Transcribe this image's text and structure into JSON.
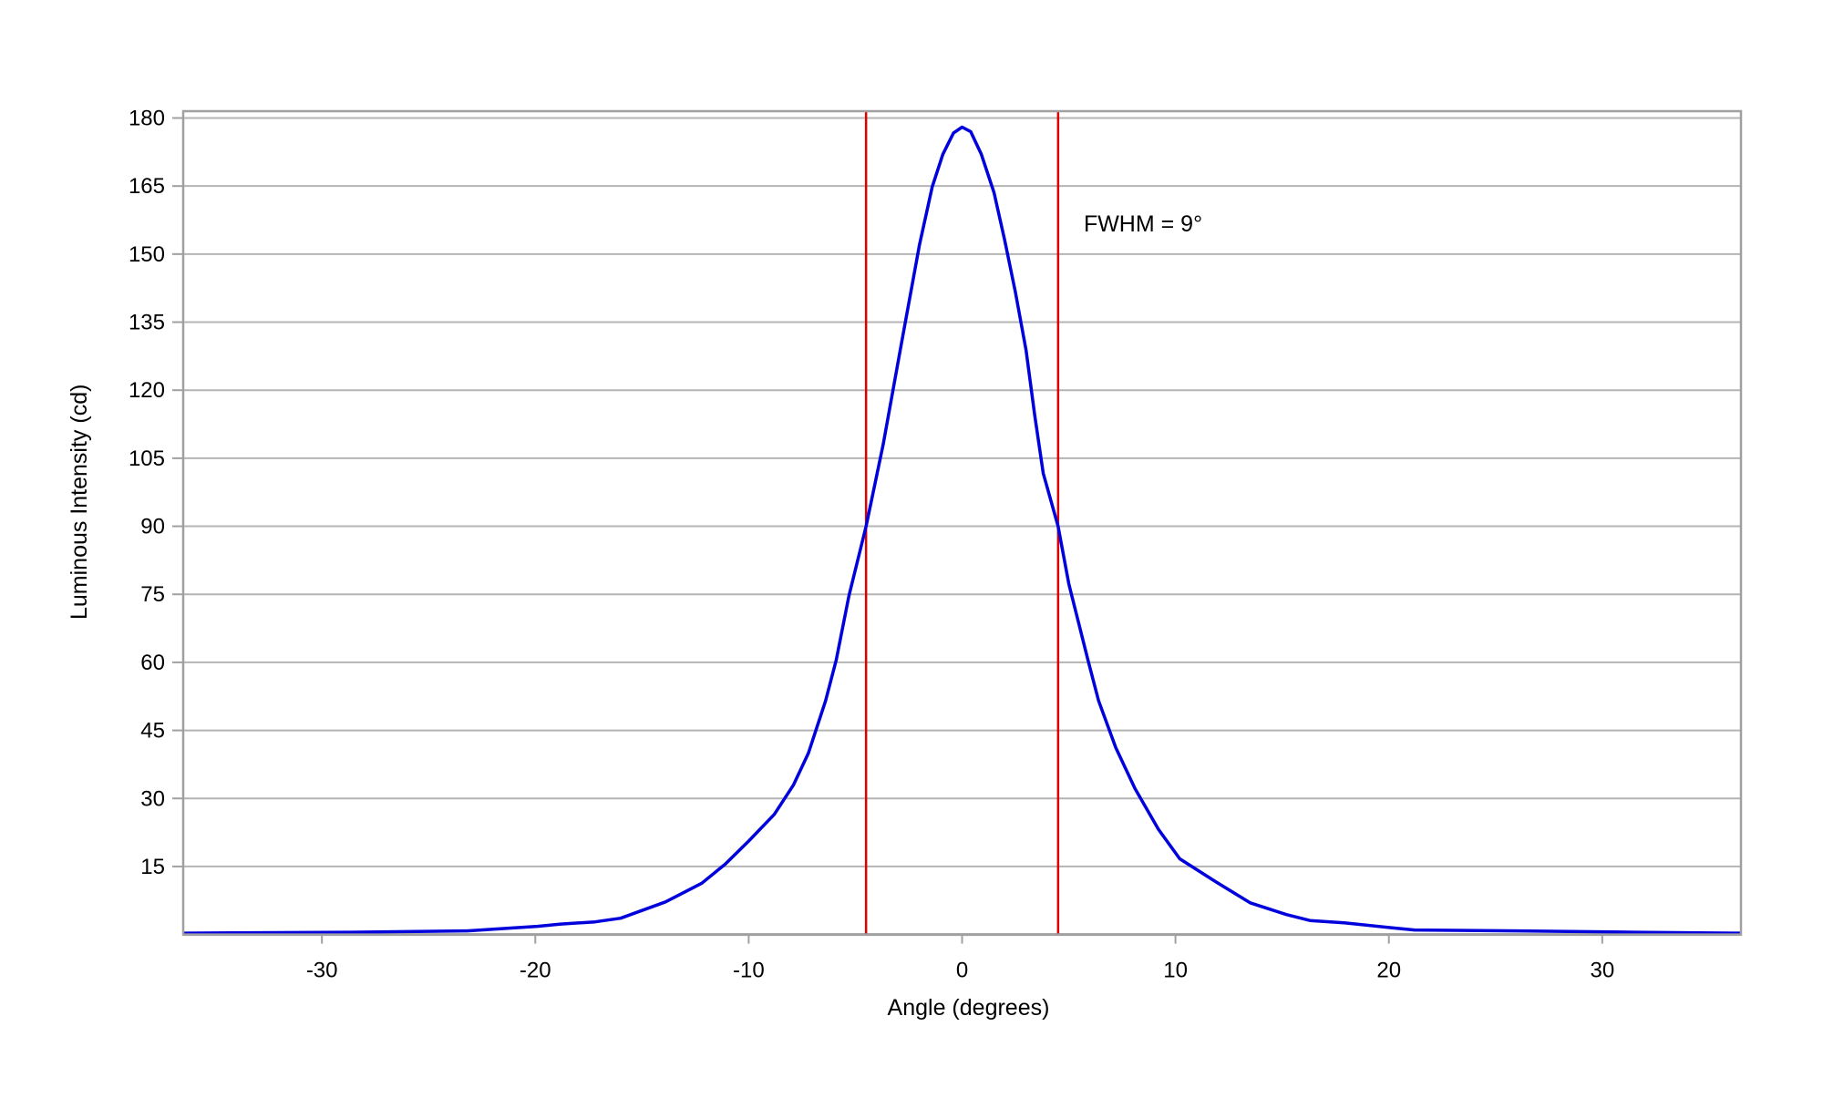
{
  "chart_data": {
    "type": "line",
    "title": "",
    "xlabel": "Angle (degrees)",
    "ylabel": "Luminous Intensity (cd)",
    "xlim": [
      -36.5,
      36.5
    ],
    "ylim": [
      0,
      180
    ],
    "xticks": [
      -30,
      -20,
      -10,
      0,
      10,
      20,
      30
    ],
    "yticks": [
      15,
      30,
      45,
      60,
      75,
      90,
      105,
      120,
      135,
      150,
      165,
      180
    ],
    "grid": "horizontal",
    "colors": {
      "series": "#0000dd",
      "markers": "#dd0000",
      "grid": "#b4b4b4",
      "frame": "#a0a0a0"
    },
    "series": [
      {
        "x": [
          -36.5,
          -28.7,
          -23.2,
          -19.9,
          -18.8,
          -17.2,
          -16,
          -13.9,
          -12.2,
          -11.1,
          -10,
          -8.8,
          -7.9,
          -7.2,
          -6.4,
          -5.9,
          -5.3,
          -4.5,
          -3.7,
          -2.9,
          -2,
          -1.4,
          -0.9,
          -0.4,
          0,
          0.4,
          0.9,
          1.5,
          2,
          2.5,
          3,
          3.4,
          3.8,
          4.5,
          5,
          5.9,
          6.4,
          7.2,
          8.1,
          9.2,
          10.2,
          11.9,
          13.5,
          15.2,
          16.3,
          17.9,
          20.1,
          21.2,
          26.1,
          31.6,
          36.5
        ],
        "y": [
          0.3,
          0.5,
          0.8,
          1.8,
          2.3,
          2.8,
          3.6,
          7.2,
          11.3,
          15.5,
          20.6,
          26.5,
          33,
          40,
          51.5,
          60.5,
          74.7,
          90,
          108,
          128.8,
          152,
          164.8,
          172,
          176.7,
          178,
          177,
          172,
          163.5,
          153,
          141.6,
          128.8,
          114.6,
          101.7,
          90,
          77.3,
          60.5,
          51.5,
          41.2,
          32.2,
          23.2,
          16.7,
          11.6,
          7,
          4.4,
          3.1,
          2.6,
          1.5,
          1,
          0.8,
          0.5,
          0.3
        ]
      }
    ],
    "vertical_lines": [
      -4.5,
      4.5
    ],
    "annotations": [
      {
        "text": "FWHM = 9°",
        "x": 5.7,
        "y": 155
      }
    ]
  }
}
